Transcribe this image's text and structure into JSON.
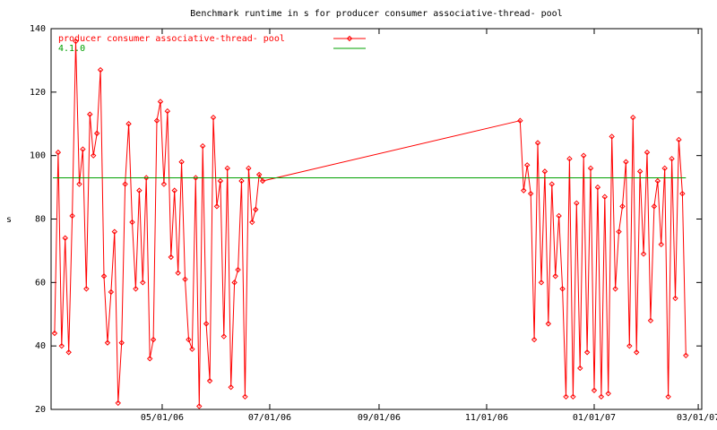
{
  "chart_data": {
    "type": "line",
    "title": "Benchmark runtime in s for producer consumer associative-thread-  pool",
    "y_label": "s",
    "xlim": [
      "2006-02-27",
      "2007-03-03"
    ],
    "xticks": [
      {
        "value": "2006-05-01",
        "label": "05/01/06"
      },
      {
        "value": "2006-07-01",
        "label": "07/01/06"
      },
      {
        "value": "2006-09-01",
        "label": "09/01/06"
      },
      {
        "value": "2006-11-01",
        "label": "11/01/06"
      },
      {
        "value": "2007-01-01",
        "label": "01/01/07"
      },
      {
        "value": "2007-03-01",
        "label": "03/01/07"
      }
    ],
    "ylim": [
      20,
      140
    ],
    "yticks": [
      20,
      40,
      60,
      80,
      100,
      120,
      140
    ],
    "legend": "top-left",
    "series": [
      {
        "name": "producer consumer associative-thread-  pool",
        "color": "#ff0000",
        "markers": true,
        "x": [
          "2006-03-01",
          "2006-03-03",
          "2006-03-05",
          "2006-03-07",
          "2006-03-09",
          "2006-03-11",
          "2006-03-13",
          "2006-03-15",
          "2006-03-17",
          "2006-03-19",
          "2006-03-21",
          "2006-03-23",
          "2006-03-25",
          "2006-03-27",
          "2006-03-29",
          "2006-03-31",
          "2006-04-02",
          "2006-04-04",
          "2006-04-06",
          "2006-04-08",
          "2006-04-10",
          "2006-04-12",
          "2006-04-14",
          "2006-04-16",
          "2006-04-18",
          "2006-04-20",
          "2006-04-22",
          "2006-04-24",
          "2006-04-26",
          "2006-04-28",
          "2006-04-30",
          "2006-05-02",
          "2006-05-04",
          "2006-05-06",
          "2006-05-08",
          "2006-05-10",
          "2006-05-12",
          "2006-05-14",
          "2006-05-16",
          "2006-05-18",
          "2006-05-20",
          "2006-05-22",
          "2006-05-24",
          "2006-05-26",
          "2006-05-28",
          "2006-05-30",
          "2006-06-01",
          "2006-06-03",
          "2006-06-05",
          "2006-06-07",
          "2006-06-09",
          "2006-06-11",
          "2006-06-13",
          "2006-06-15",
          "2006-06-17",
          "2006-06-19",
          "2006-06-21",
          "2006-06-23",
          "2006-06-25",
          "2006-06-27",
          "2006-11-20",
          "2006-11-22",
          "2006-11-24",
          "2006-11-26",
          "2006-11-28",
          "2006-11-30",
          "2006-12-02",
          "2006-12-04",
          "2006-12-06",
          "2006-12-08",
          "2006-12-10",
          "2006-12-12",
          "2006-12-14",
          "2006-12-16",
          "2006-12-18",
          "2006-12-20",
          "2006-12-22",
          "2006-12-24",
          "2006-12-26",
          "2006-12-28",
          "2006-12-30",
          "2007-01-01",
          "2007-01-03",
          "2007-01-05",
          "2007-01-07",
          "2007-01-09",
          "2007-01-11",
          "2007-01-13",
          "2007-01-15",
          "2007-01-17",
          "2007-01-19",
          "2007-01-21",
          "2007-01-23",
          "2007-01-25",
          "2007-01-27",
          "2007-01-29",
          "2007-01-31",
          "2007-02-02",
          "2007-02-04",
          "2007-02-06",
          "2007-02-08",
          "2007-02-10",
          "2007-02-12",
          "2007-02-14",
          "2007-02-16",
          "2007-02-18",
          "2007-02-20",
          "2007-02-22"
        ],
        "values": [
          44,
          101,
          40,
          74,
          38,
          81,
          136,
          91,
          102,
          58,
          113,
          100,
          107,
          127,
          62,
          41,
          57,
          76,
          22,
          41,
          91,
          110,
          79,
          58,
          89,
          60,
          93,
          36,
          42,
          111,
          117,
          91,
          114,
          68,
          89,
          63,
          98,
          61,
          42,
          39,
          93,
          21,
          103,
          47,
          29,
          112,
          84,
          92,
          43,
          96,
          27,
          60,
          64,
          92,
          24,
          96,
          79,
          83,
          94,
          92,
          111,
          89,
          97,
          88,
          42,
          104,
          60,
          95,
          47,
          91,
          62,
          81,
          58,
          24,
          99,
          24,
          85,
          33,
          100,
          38,
          96,
          26,
          90,
          24,
          87,
          25,
          106,
          58,
          76,
          84,
          98,
          40,
          112,
          38,
          95,
          69,
          101,
          48,
          84,
          92,
          72,
          96,
          24,
          99,
          55,
          105,
          88,
          37
        ]
      },
      {
        "name": "4.1.0",
        "color": "#00a000",
        "markers": false,
        "x": [
          "2006-02-28",
          "2007-02-22"
        ],
        "values": [
          93,
          93
        ]
      }
    ]
  }
}
